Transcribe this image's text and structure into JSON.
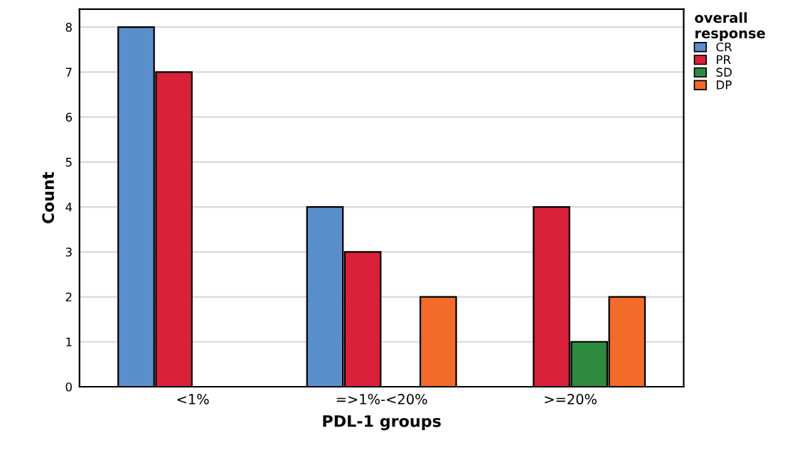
{
  "chart_data": {
    "type": "bar",
    "xlabel": "PDL-1 groups",
    "ylabel": "Count",
    "legend_title": "overall\nresponse",
    "categories": [
      "<1%",
      "=>1%-<20%",
      ">=20%"
    ],
    "series": [
      {
        "name": "CR",
        "color": "#5b8fcc",
        "values": [
          8,
          4,
          null
        ]
      },
      {
        "name": "PR",
        "color": "#d9213a",
        "values": [
          7,
          3,
          4
        ]
      },
      {
        "name": "SD",
        "color": "#2e8a3e",
        "values": [
          null,
          null,
          1
        ]
      },
      {
        "name": "DP",
        "color": "#f26b29",
        "values": [
          null,
          2,
          2
        ]
      }
    ],
    "ylim": [
      0,
      8.4
    ],
    "yticks": [
      0,
      1,
      2,
      3,
      4,
      5,
      6,
      7,
      8
    ],
    "grid": "y",
    "legend": "top right"
  }
}
